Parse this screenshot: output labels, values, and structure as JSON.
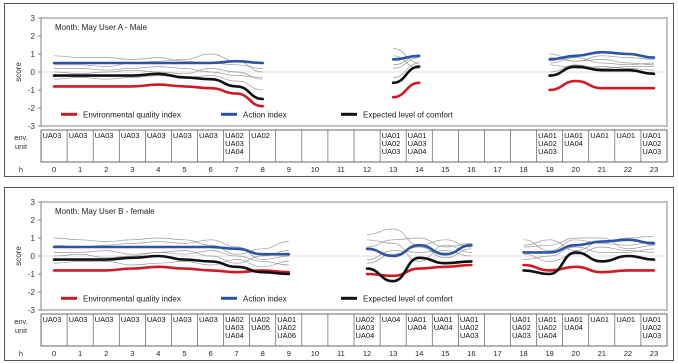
{
  "hours": [
    "0",
    "1",
    "2",
    "3",
    "4",
    "5",
    "6",
    "7",
    "8",
    "9",
    "10",
    "11",
    "12",
    "13",
    "14",
    "15",
    "16",
    "17",
    "18",
    "19",
    "20",
    "21",
    "22",
    "23"
  ],
  "row_labels": {
    "env": "env.",
    "unit": "unit",
    "h": "h"
  },
  "y_axis": {
    "label": "score",
    "ticks": [
      "3",
      "2",
      "1",
      "0",
      "-1",
      "-2",
      "-3"
    ]
  },
  "legend": {
    "env": "Environmental quality index",
    "action": "Action index",
    "comfort": "Expected level of comfort"
  },
  "colors": {
    "env": "#d11a24",
    "action": "#2b55a3",
    "comfort": "#111111",
    "thin": "#999999"
  },
  "chart_data": [
    {
      "type": "line",
      "title": "Month: May     User A - Male",
      "ylabel": "score",
      "ylim": [
        -3,
        3
      ],
      "x": [
        0,
        1,
        2,
        3,
        4,
        5,
        6,
        7,
        8,
        9,
        10,
        11,
        12,
        13,
        14,
        15,
        16,
        17,
        18,
        19,
        20,
        21,
        22,
        23
      ],
      "series": [
        {
          "name": "Environmental quality index",
          "color": "#d11a24",
          "values": [
            -0.8,
            -0.8,
            -0.8,
            -0.8,
            -0.7,
            -0.8,
            -0.9,
            -1.2,
            -1.9,
            null,
            null,
            null,
            null,
            -1.4,
            -0.6,
            null,
            null,
            null,
            null,
            -1.0,
            -0.5,
            -0.9,
            -0.9,
            -0.9
          ]
        },
        {
          "name": "Action index",
          "color": "#2b55a3",
          "values": [
            0.5,
            0.5,
            0.5,
            0.5,
            0.5,
            0.5,
            0.5,
            0.6,
            0.5,
            null,
            null,
            null,
            null,
            0.7,
            0.9,
            null,
            null,
            null,
            null,
            0.7,
            0.9,
            1.1,
            1.0,
            0.8
          ]
        },
        {
          "name": "Expected level of comfort",
          "color": "#111111",
          "values": [
            -0.2,
            -0.2,
            -0.2,
            -0.2,
            -0.1,
            -0.3,
            -0.4,
            -0.8,
            -1.5,
            null,
            null,
            null,
            null,
            -0.6,
            0.3,
            null,
            null,
            null,
            null,
            -0.2,
            0.3,
            0.1,
            0.1,
            -0.1
          ]
        }
      ],
      "thin_lines": [
        {
          "values": [
            0.9,
            0.8,
            0.8,
            0.7,
            0.8,
            0.6,
            0.5,
            0.4,
            0.2,
            null,
            null,
            null,
            null,
            0.2,
            0.8,
            null,
            null,
            null,
            null,
            0.8,
            0.6,
            0.7,
            0.5,
            0.4
          ]
        },
        {
          "values": [
            0.2,
            0.2,
            0.1,
            0.2,
            0.3,
            0.2,
            0.0,
            -0.2,
            -0.3,
            null,
            null,
            null,
            null,
            0.4,
            0.9,
            null,
            null,
            null,
            null,
            0.4,
            0.2,
            0.3,
            0.2,
            0.1
          ]
        },
        {
          "values": [
            -0.4,
            -0.3,
            -0.4,
            -0.3,
            -0.2,
            -0.3,
            -0.2,
            -0.5,
            -1.0,
            null,
            null,
            null,
            null,
            -0.3,
            0.5,
            null,
            null,
            null,
            null,
            0.0,
            0.4,
            0.2,
            0.3,
            0.3
          ]
        },
        {
          "values": [
            0.4,
            0.4,
            0.3,
            0.5,
            0.6,
            0.7,
            1.0,
            0.6,
            0.0,
            null,
            null,
            null,
            null,
            1.3,
            0.5,
            null,
            null,
            null,
            null,
            1.0,
            0.6,
            0.9,
            0.8,
            0.7
          ]
        },
        {
          "values": [
            0.0,
            -0.1,
            0.0,
            0.1,
            0.0,
            -0.1,
            0.2,
            0.0,
            -0.4,
            null,
            null,
            null,
            null,
            0.9,
            0.2,
            null,
            null,
            null,
            null,
            0.5,
            0.8,
            0.5,
            0.4,
            0.5
          ]
        }
      ],
      "env_units": [
        [
          "UA03"
        ],
        [
          "UA03"
        ],
        [
          "UA03"
        ],
        [
          "UA03"
        ],
        [
          "UA03"
        ],
        [
          "UA03"
        ],
        [
          "UA03"
        ],
        [
          "UA02",
          "UA03",
          "UA04"
        ],
        [
          "UA02"
        ],
        [],
        [],
        [],
        [],
        [
          "UA01",
          "UA02",
          "UA03"
        ],
        [
          "UA01",
          "UA03",
          "UA04"
        ],
        [],
        [],
        [],
        [],
        [
          "UA01",
          "UA02",
          "UA03"
        ],
        [
          "UA01",
          "UA04"
        ],
        [
          "UA01"
        ],
        [
          "UA01"
        ],
        [
          "UA01",
          "UA02",
          "UA03"
        ]
      ]
    },
    {
      "type": "line",
      "title": "Month: May     User B - female",
      "ylabel": "score",
      "ylim": [
        -3,
        3
      ],
      "x": [
        0,
        1,
        2,
        3,
        4,
        5,
        6,
        7,
        8,
        9,
        10,
        11,
        12,
        13,
        14,
        15,
        16,
        17,
        18,
        19,
        20,
        21,
        22,
        23
      ],
      "series": [
        {
          "name": "Environmental quality index",
          "color": "#d11a24",
          "values": [
            -0.8,
            -0.8,
            -0.8,
            -0.7,
            -0.6,
            -0.7,
            -0.8,
            -0.9,
            -0.8,
            -0.9,
            null,
            null,
            -1.0,
            -1.1,
            -0.7,
            -0.6,
            -0.5,
            null,
            -0.5,
            -0.8,
            -0.6,
            -0.9,
            -0.8,
            -0.8
          ]
        },
        {
          "name": "Action index",
          "color": "#2b55a3",
          "values": [
            0.5,
            0.5,
            0.5,
            0.5,
            0.5,
            0.5,
            0.5,
            0.4,
            0.1,
            0.1,
            null,
            null,
            0.4,
            0.0,
            0.6,
            0.1,
            0.6,
            null,
            0.2,
            0.2,
            0.6,
            0.8,
            0.9,
            0.7
          ]
        },
        {
          "name": "Expected level of comfort",
          "color": "#111111",
          "values": [
            -0.2,
            -0.2,
            -0.2,
            -0.1,
            0.0,
            -0.2,
            -0.3,
            -0.6,
            -0.9,
            -1.0,
            null,
            null,
            -0.7,
            -1.4,
            -0.1,
            -0.4,
            -0.3,
            null,
            -0.8,
            -1.0,
            0.2,
            -0.3,
            0.0,
            -0.2
          ]
        }
      ],
      "thin_lines": [
        {
          "values": [
            1.0,
            0.9,
            0.8,
            0.9,
            1.0,
            0.9,
            0.6,
            0.1,
            0.4,
            0.8,
            null,
            null,
            1.2,
            1.5,
            0.6,
            0.9,
            0.5,
            null,
            0.9,
            0.3,
            0.9,
            0.7,
            0.6,
            0.8
          ]
        },
        {
          "values": [
            0.2,
            0.2,
            0.3,
            0.1,
            0.2,
            0.3,
            0.0,
            -0.4,
            0.0,
            0.3,
            null,
            null,
            0.5,
            0.9,
            1.0,
            0.5,
            0.7,
            null,
            0.5,
            0.6,
            1.0,
            1.0,
            0.4,
            0.6
          ]
        },
        {
          "values": [
            -0.4,
            -0.3,
            -0.3,
            -0.5,
            -0.4,
            -0.3,
            -0.5,
            -0.2,
            -0.6,
            -0.3,
            null,
            null,
            -0.2,
            0.3,
            0.2,
            0.3,
            0.0,
            null,
            -0.2,
            0.0,
            0.5,
            0.2,
            0.2,
            0.4
          ]
        },
        {
          "values": [
            0.6,
            0.5,
            0.6,
            0.7,
            0.8,
            0.7,
            0.9,
            0.5,
            -0.2,
            0.0,
            null,
            null,
            0.9,
            0.7,
            -0.3,
            0.6,
            0.2,
            null,
            0.6,
            0.9,
            0.3,
            0.8,
            1.0,
            1.1
          ]
        },
        {
          "values": [
            0.0,
            0.1,
            -0.1,
            0.0,
            0.2,
            0.1,
            0.3,
            0.0,
            -0.3,
            -0.5,
            null,
            null,
            -0.4,
            0.1,
            0.5,
            -0.1,
            0.4,
            null,
            0.1,
            -0.3,
            0.1,
            0.5,
            0.3,
            0.2
          ]
        }
      ],
      "env_units": [
        [
          "UA03"
        ],
        [
          "UA03"
        ],
        [
          "UA03"
        ],
        [
          "UA03"
        ],
        [
          "UA03"
        ],
        [
          "UA03"
        ],
        [
          "UA03"
        ],
        [
          "UA02",
          "UA03",
          "UA04"
        ],
        [
          "UA02",
          "UA05"
        ],
        [
          "UA01",
          "UA02",
          "UA06"
        ],
        [],
        [],
        [
          "UA02",
          "UA03",
          "UA04"
        ],
        [
          "UA04"
        ],
        [
          "UA01",
          "UA04"
        ],
        [
          "UA01",
          "UA04"
        ],
        [
          "UA01",
          "UA02",
          "UA03"
        ],
        [],
        [
          "UA01",
          "UA02",
          "UA03"
        ],
        [
          "UA01",
          "UA02",
          "UA04"
        ],
        [
          "UA01",
          "UA04"
        ],
        [
          "UA01"
        ],
        [
          "UA01"
        ],
        [
          "UA01",
          "UA02",
          "UA03"
        ]
      ]
    }
  ]
}
